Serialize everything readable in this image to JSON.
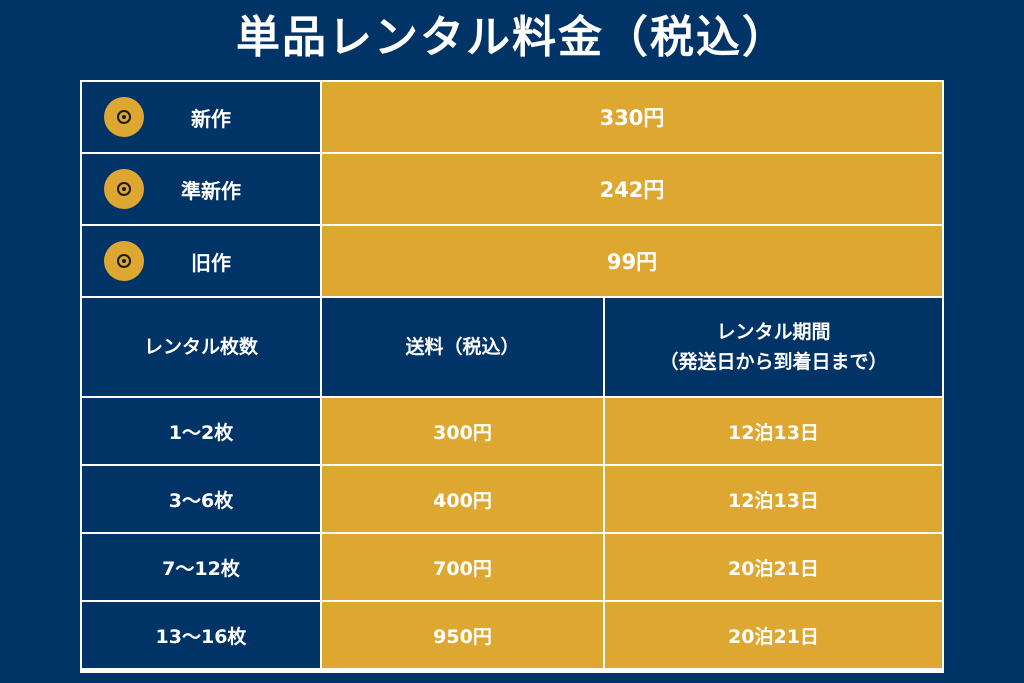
{
  "title": "単品レンタル料金（税込）",
  "price_rows": [
    {
      "label": "新作",
      "price": "330円",
      "icon": "disc-icon"
    },
    {
      "label": "準新作",
      "price": "242円",
      "icon": "disc-icon"
    },
    {
      "label": "旧作",
      "price": "99円",
      "icon": "disc-icon"
    }
  ],
  "shipping_table": {
    "headers": {
      "count": "レンタル枚数",
      "fee": "送料（税込）",
      "period_line1": "レンタル期間",
      "period_line2": "（発送日から到着日まで）"
    },
    "rows": [
      {
        "count": "1〜2枚",
        "fee": "300円",
        "period": "12泊13日"
      },
      {
        "count": "3〜6枚",
        "fee": "400円",
        "period": "12泊13日"
      },
      {
        "count": "7〜12枚",
        "fee": "700円",
        "period": "20泊21日"
      },
      {
        "count": "13〜16枚",
        "fee": "950円",
        "period": "20泊21日"
      }
    ]
  },
  "colors": {
    "navy": "#003366",
    "gold": "#dea731",
    "white": "#ffffff"
  }
}
